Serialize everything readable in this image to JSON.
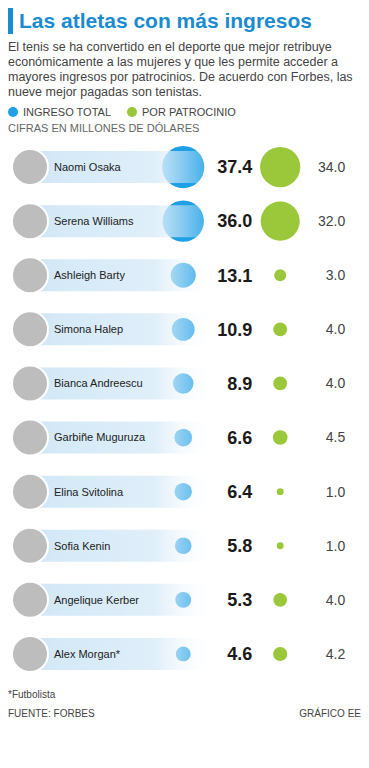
{
  "chart_data": {
    "type": "bubble",
    "title": "Las atletas con más ingresos",
    "subtitle": "El tenis se ha convertido en el deporte que mejor retribuye económicamente a las mujeres y que les permite acceder a mayores ingresos por patrocinios. De acuerdo con Forbes, las nueve mejor pagadas son tenistas.",
    "units_note": "CIFRAS EN MILLONES DE DÓLARES",
    "categories": [
      "Naomi Osaka",
      "Serena Williams",
      "Ashleigh Barty",
      "Simona Halep",
      "Bianca Andreescu",
      "Garbiñe Muguruza",
      "Elina Svitolina",
      "Sofia Kenin",
      "Angelique Kerber",
      "Alex Morgan*"
    ],
    "series": [
      {
        "name": "INGRESO TOTAL",
        "color": "#1e9fe6",
        "values": [
          37.4,
          36.0,
          13.1,
          10.9,
          8.9,
          6.6,
          6.4,
          5.8,
          5.3,
          4.6
        ],
        "value_labels": [
          "37.4",
          "36.0",
          "13.1",
          "10.9",
          "8.9",
          "6.6",
          "6.4",
          "5.8",
          "5.3",
          "4.6"
        ]
      },
      {
        "name": "POR PATROCINIO",
        "color": "#9bc83a",
        "values": [
          34.0,
          32.0,
          3.0,
          4.0,
          4.0,
          4.5,
          1.0,
          1.0,
          4.0,
          4.2
        ],
        "value_labels": [
          "34.0",
          "32.0",
          "3.0",
          "4.0",
          "4.0",
          "4.5",
          "1.0",
          "1.0",
          "4.0",
          "4.2"
        ]
      }
    ],
    "data_labels": true,
    "legend": "top",
    "footnote": "*Futbolista",
    "source": "FUENTE: FORBES",
    "credit": "GRÁFICO EE"
  }
}
